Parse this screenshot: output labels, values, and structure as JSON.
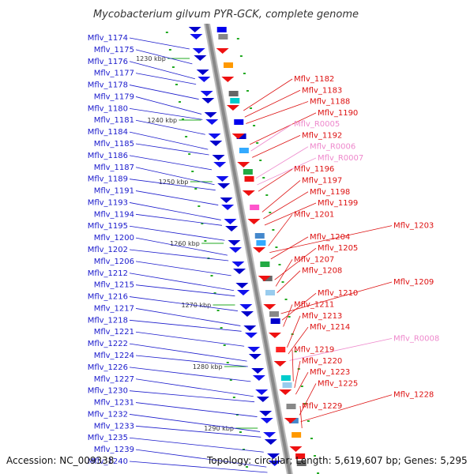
{
  "title": "Mycobacterium gilvum PYR-GCK, complete genome",
  "footer": {
    "accession": "Accession: NC_009338",
    "summary": "Topology: circular; Length: 5,619,607 bp; Genes: 5,295"
  },
  "colors": {
    "left_label": "#1a1acc",
    "right_label": "#dd1111",
    "rna_label": "#ee88cc",
    "backbone": "#999999",
    "tick": "#22aa22"
  },
  "kbp_marks": [
    {
      "label": "1230 kbp",
      "kbp": 1230
    },
    {
      "label": "1240 kbp",
      "kbp": 1240
    },
    {
      "label": "1250 kbp",
      "kbp": 1250
    },
    {
      "label": "1260 kbp",
      "kbp": 1260
    },
    {
      "label": "1270 kbp",
      "kbp": 1270
    },
    {
      "label": "1280 kbp",
      "kbp": 1280
    },
    {
      "label": "1290 kbp",
      "kbp": 1290
    }
  ],
  "left_genes": [
    "Mflv_1174",
    "Mflv_1175",
    "Mflv_1176",
    "Mflv_1177",
    "Mflv_1178",
    "Mflv_1179",
    "Mflv_1180",
    "Mflv_1181",
    "Mflv_1184",
    "Mflv_1185",
    "Mflv_1186",
    "Mflv_1187",
    "Mflv_1189",
    "Mflv_1191",
    "Mflv_1193",
    "Mflv_1194",
    "Mflv_1195",
    "Mflv_1200",
    "Mflv_1202",
    "Mflv_1206",
    "Mflv_1212",
    "Mflv_1215",
    "Mflv_1216",
    "Mflv_1217",
    "Mflv_1218",
    "Mflv_1221",
    "Mflv_1222",
    "Mflv_1224",
    "Mflv_1226",
    "Mflv_1227",
    "Mflv_1230",
    "Mflv_1231",
    "Mflv_1232",
    "Mflv_1233",
    "Mflv_1235",
    "Mflv_1239",
    "Mflv_1240"
  ],
  "right_genes": [
    {
      "name": "Mflv_1182",
      "type": "cds"
    },
    {
      "name": "Mflv_1183",
      "type": "cds"
    },
    {
      "name": "Mflv_1188",
      "type": "cds"
    },
    {
      "name": "Mflv_1190",
      "type": "cds"
    },
    {
      "name": "Mflv_R0005",
      "type": "rna"
    },
    {
      "name": "Mflv_1192",
      "type": "cds"
    },
    {
      "name": "Mflv_R0006",
      "type": "rna"
    },
    {
      "name": "Mflv_R0007",
      "type": "rna"
    },
    {
      "name": "Mflv_1196",
      "type": "cds"
    },
    {
      "name": "Mflv_1197",
      "type": "cds"
    },
    {
      "name": "Mflv_1198",
      "type": "cds"
    },
    {
      "name": "Mflv_1199",
      "type": "cds"
    },
    {
      "name": "Mflv_1201",
      "type": "cds"
    },
    {
      "name": "Mflv_1203",
      "type": "cds"
    },
    {
      "name": "Mflv_1204",
      "type": "cds"
    },
    {
      "name": "Mflv_1205",
      "type": "cds"
    },
    {
      "name": "Mflv_1207",
      "type": "cds"
    },
    {
      "name": "Mflv_1208",
      "type": "cds"
    },
    {
      "name": "Mflv_1209",
      "type": "cds"
    },
    {
      "name": "Mflv_1210",
      "type": "cds"
    },
    {
      "name": "Mflv_1211",
      "type": "cds"
    },
    {
      "name": "Mflv_1213",
      "type": "cds"
    },
    {
      "name": "Mflv_1214",
      "type": "cds"
    },
    {
      "name": "Mflv_R0008",
      "type": "rna"
    },
    {
      "name": "Mflv_1219",
      "type": "cds"
    },
    {
      "name": "Mflv_1220",
      "type": "cds"
    },
    {
      "name": "Mflv_1223",
      "type": "cds"
    },
    {
      "name": "Mflv_1225",
      "type": "cds"
    },
    {
      "name": "Mflv_1228",
      "type": "cds"
    },
    {
      "name": "Mflv_1229",
      "type": "cds"
    }
  ]
}
